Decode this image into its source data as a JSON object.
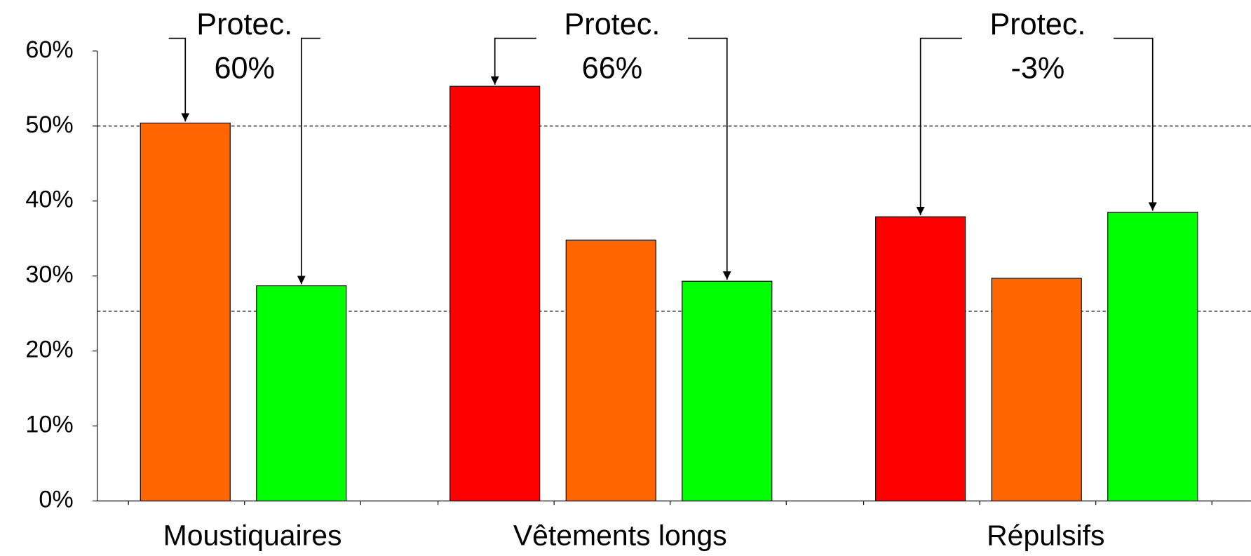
{
  "chart_data": {
    "type": "bar",
    "categories": [
      "Moustiquaires",
      "Vêtements longs",
      "Répulsifs"
    ],
    "series": [
      {
        "color": "#ff0000",
        "values": [
          null,
          55.3,
          37.9
        ]
      },
      {
        "color": "#ff6600",
        "values": [
          50.4,
          34.8,
          29.7
        ]
      },
      {
        "color": "#00ff00",
        "values": [
          28.7,
          29.3,
          38.5
        ]
      }
    ],
    "ylim": [
      0,
      60
    ],
    "yticks": [
      {
        "value": 0,
        "label": "0%"
      },
      {
        "value": 10,
        "label": "10%"
      },
      {
        "value": 20,
        "label": "20%"
      },
      {
        "value": 30,
        "label": "30%"
      },
      {
        "value": 40,
        "label": "40%"
      },
      {
        "value": 50,
        "label": "50%"
      },
      {
        "value": 60,
        "label": "60%"
      }
    ],
    "hlines": [
      50,
      25.3
    ],
    "annotations": [
      {
        "lines": [
          "Protec.",
          "60%"
        ]
      },
      {
        "lines": [
          "Protec.",
          "66%"
        ]
      },
      {
        "lines": [
          "Protec.",
          "-3%"
        ]
      }
    ]
  }
}
